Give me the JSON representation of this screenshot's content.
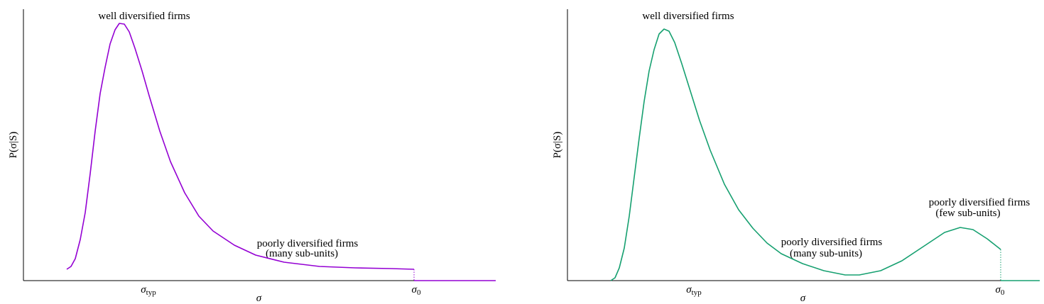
{
  "chart_data": [
    {
      "type": "line",
      "xlabel": "σ",
      "ylabel": "P(σ|S)",
      "xlim": [
        0,
        665
      ],
      "ylim": [
        0,
        383
      ],
      "xticks": [
        {
          "value": 176,
          "label": "σ",
          "sub": "typ"
        },
        {
          "value": 553,
          "label": "σ",
          "sub": "0"
        }
      ],
      "annotations": [
        "well diversified firms",
        "poorly diversified firms",
        "(many sub-units)"
      ],
      "series": [
        {
          "color": "#9400d3",
          "x": [
            61,
            67,
            73,
            80,
            87,
            94,
            101,
            108,
            115,
            122,
            129,
            135,
            142,
            149,
            157,
            167,
            177,
            192,
            207,
            227,
            247,
            267,
            297,
            327,
            367,
            417,
            467,
            517,
            550,
            null,
            550,
            665
          ],
          "values": [
            16,
            20,
            31,
            58,
            96,
            151,
            211,
            264,
            301,
            334,
            354,
            363,
            362,
            351,
            328,
            296,
            261,
            211,
            168,
            124,
            91,
            70,
            50,
            36,
            26,
            20,
            18,
            17,
            16,
            null,
            0,
            0
          ]
        }
      ]
    },
    {
      "type": "line",
      "xlabel": "σ",
      "ylabel": "P(σ|S)",
      "xlim": [
        0,
        665
      ],
      "ylim": [
        0,
        383
      ],
      "xticks": [
        {
          "value": 178,
          "label": "σ",
          "sub": "typ"
        },
        {
          "value": 609,
          "label": "σ",
          "sub": "0"
        }
      ],
      "annotations": [
        "well diversified firms",
        "poorly diversified firms",
        "(many sub-units)",
        "poorly diversified firms",
        "(few sub-units)"
      ],
      "series": [
        {
          "color": "#16a070",
          "x": [
            61,
            67,
            73,
            80,
            87,
            94,
            101,
            108,
            115,
            122,
            129,
            136,
            143,
            151,
            161,
            171,
            186,
            201,
            221,
            241,
            261,
            281,
            301,
            331,
            361,
            391,
            411,
            441,
            471,
            501,
            531,
            553,
            571,
            591,
            610,
            null,
            610,
            665
          ],
          "values": [
            0,
            4,
            18,
            46,
            91,
            146,
            201,
            253,
            296,
            326,
            348,
            355,
            352,
            336,
            306,
            274,
            226,
            184,
            136,
            100,
            74,
            53,
            38,
            24,
            14,
            8,
            8,
            14,
            28,
            48,
            68,
            75,
            72,
            59,
            44,
            null,
            0,
            0
          ]
        }
      ]
    }
  ]
}
